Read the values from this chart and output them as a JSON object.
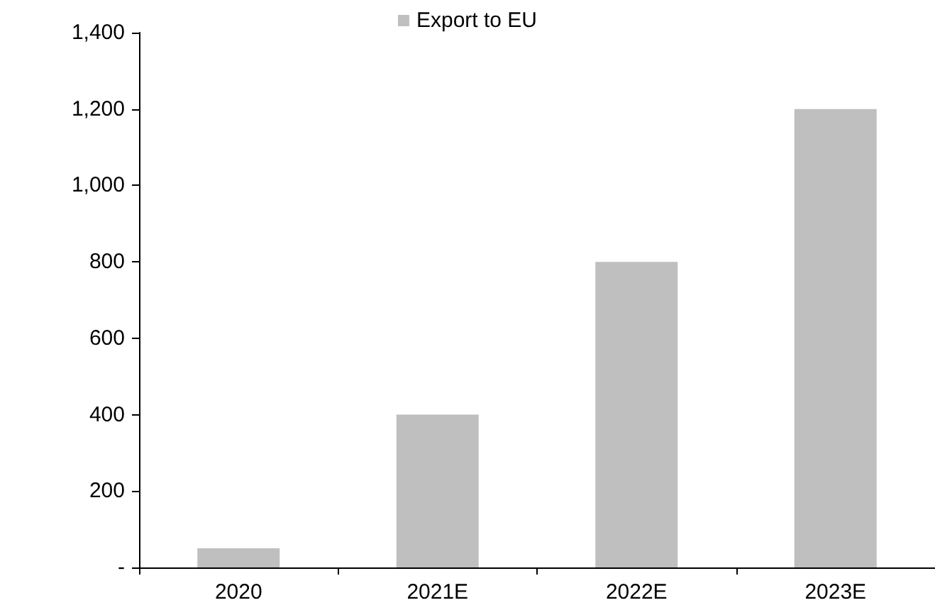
{
  "chart_data": {
    "type": "bar",
    "categories": [
      "2020",
      "2021E",
      "2022E",
      "2023E"
    ],
    "series": [
      {
        "name": "Export to EU",
        "color": "#bfbfbf",
        "values": [
          50,
          400,
          800,
          1200
        ]
      }
    ],
    "ylim": [
      0,
      1400
    ],
    "yticks": [
      {
        "value": 0,
        "label": "-"
      },
      {
        "value": 200,
        "label": "200"
      },
      {
        "value": 400,
        "label": "400"
      },
      {
        "value": 600,
        "label": "600"
      },
      {
        "value": 800,
        "label": "800"
      },
      {
        "value": 1000,
        "label": "1,000"
      },
      {
        "value": 1200,
        "label": "1,200"
      },
      {
        "value": 1400,
        "label": "1,400"
      }
    ],
    "grid": false,
    "legend": "top"
  }
}
